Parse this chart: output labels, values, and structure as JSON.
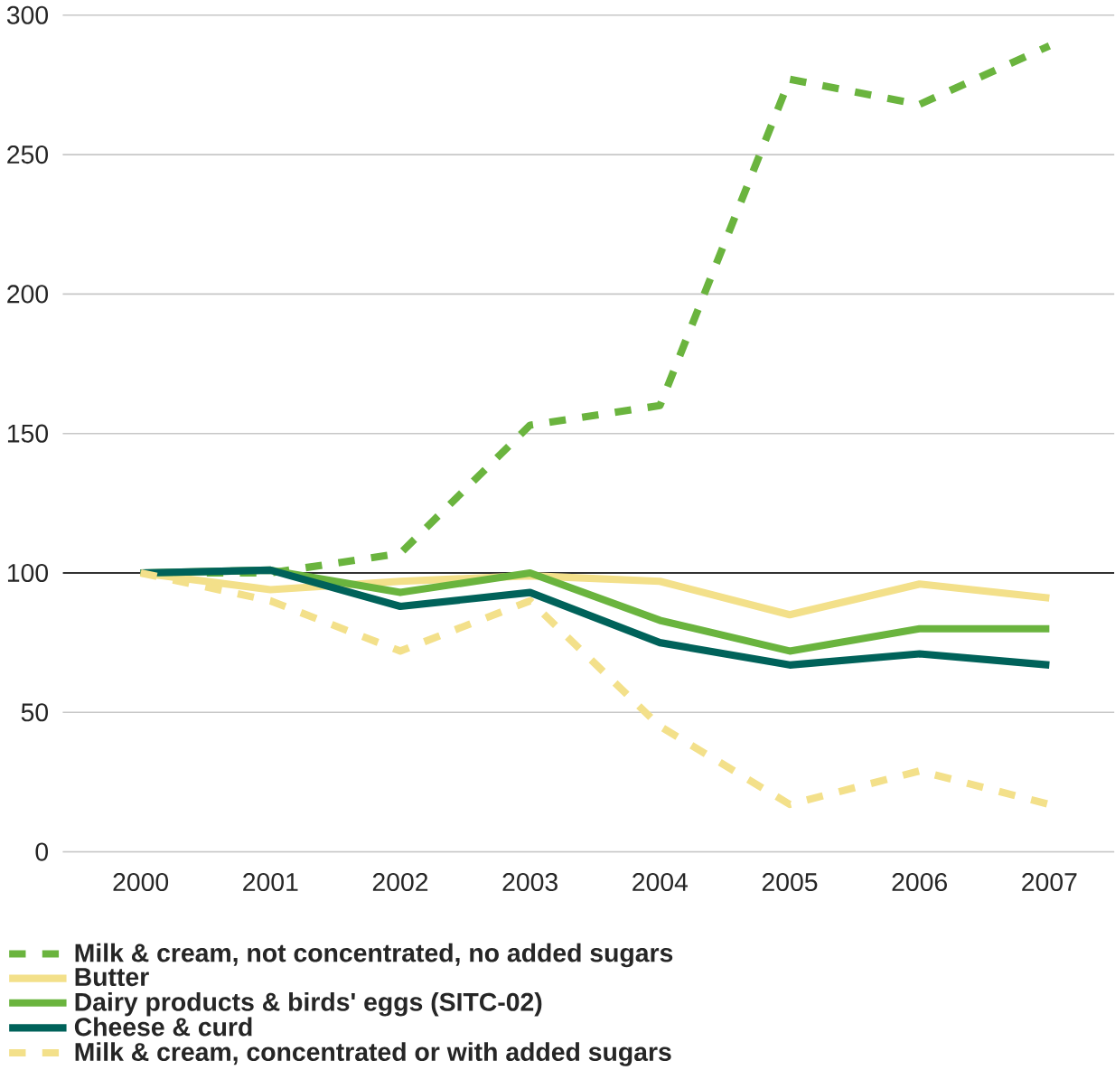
{
  "chart_data": {
    "type": "line",
    "categories": [
      "2000",
      "2001",
      "2002",
      "2003",
      "2004",
      "2005",
      "2006",
      "2007"
    ],
    "series": [
      {
        "name": "Milk & cream, not concentrated, no added sugars",
        "color": "#6ab43e",
        "line_style": "dashed",
        "values": [
          100,
          100,
          107,
          153,
          160,
          277,
          268,
          289
        ]
      },
      {
        "name": "Butter",
        "color": "#f3e08a",
        "line_style": "solid",
        "values": [
          100,
          94,
          97,
          99,
          97,
          85,
          96,
          91
        ]
      },
      {
        "name": "Dairy products & birds' eggs (SITC-02)",
        "color": "#6ab43e",
        "line_style": "solid",
        "values": [
          100,
          101,
          93,
          100,
          83,
          72,
          80,
          80
        ]
      },
      {
        "name": "Cheese & curd",
        "color": "#00625a",
        "line_style": "solid",
        "values": [
          100,
          101,
          88,
          93,
          75,
          67,
          71,
          67
        ]
      },
      {
        "name": "Milk & cream, concentrated or with added sugars",
        "color": "#f3e08a",
        "line_style": "dashed",
        "values": [
          100,
          90,
          72,
          90,
          45,
          17,
          29,
          17
        ]
      }
    ],
    "ylim": [
      0,
      300
    ],
    "yticks": [
      0,
      50,
      100,
      150,
      200,
      250,
      300
    ],
    "ref_lines": [
      {
        "axis": "y",
        "value": 100,
        "color": "#333333"
      }
    ],
    "grid": "y",
    "legend": "bottom",
    "marker": "none"
  }
}
